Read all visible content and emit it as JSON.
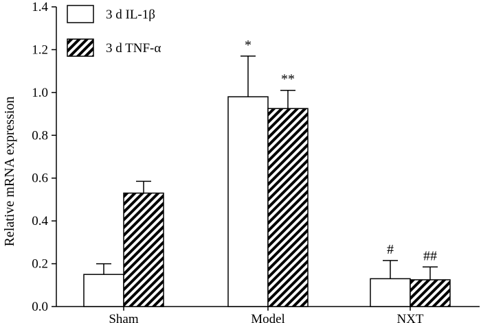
{
  "chart_data": {
    "type": "bar",
    "categories": [
      "Sham",
      "Model",
      "NXT"
    ],
    "ylabel": "Relative mRNA expression",
    "xlabel": "",
    "ylim": [
      0,
      1.4
    ],
    "yticks": [
      "0.0",
      "0.2",
      "0.4",
      "0.6",
      "0.8",
      "1.0",
      "1.2",
      "1.4"
    ],
    "grid": false,
    "legend_position": "top-left",
    "series": [
      {
        "name": "3 d IL-1β",
        "fill": "white",
        "values": [
          0.15,
          0.98,
          0.13
        ],
        "errors": [
          0.05,
          0.19,
          0.085
        ],
        "annotations": [
          "",
          "*",
          "#"
        ]
      },
      {
        "name": "3 d TNF-α",
        "fill": "hatched",
        "values": [
          0.53,
          0.925,
          0.125
        ],
        "errors": [
          0.055,
          0.085,
          0.06
        ],
        "annotations": [
          "",
          "**",
          "##"
        ]
      }
    ]
  },
  "colors": {
    "stroke": "#000000",
    "bar_white": "#ffffff",
    "hatch": "#000000"
  }
}
